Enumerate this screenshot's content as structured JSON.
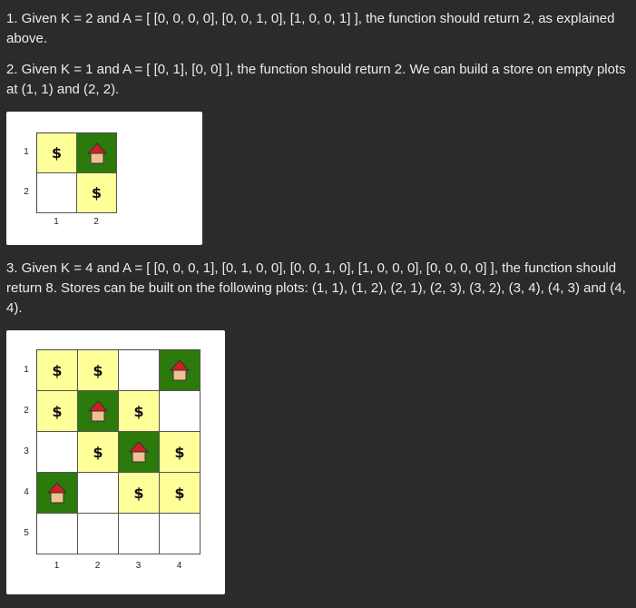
{
  "examples": [
    {
      "text": "1. Given K = 2 and A = [ [0, 0, 0, 0], [0, 0, 1, 0], [1, 0, 0, 1] ], the function should return 2, as explained above."
    },
    {
      "text": "2. Given K = 1 and A = [ [0, 1], [0, 0] ], the function should return 2. We can build a store on empty plots at (1, 1) and (2, 2).",
      "grid": {
        "row_labels": [
          "1",
          "2"
        ],
        "col_labels": [
          "1",
          "2"
        ],
        "cells": [
          [
            "store",
            "house"
          ],
          [
            "empty",
            "store"
          ]
        ]
      }
    },
    {
      "text": "3. Given K = 4 and A = [ [0, 0, 0, 1], [0, 1, 0, 0], [0, 0, 1, 0], [1, 0, 0, 0], [0, 0, 0, 0] ], the function should return 8. Stores can be built on the following plots: (1, 1), (1, 2), (2, 1), (2, 3), (3, 2), (3, 4), (4, 3) and (4, 4).",
      "grid": {
        "row_labels": [
          "1",
          "2",
          "3",
          "4",
          "5"
        ],
        "col_labels": [
          "1",
          "2",
          "3",
          "4"
        ],
        "cells": [
          [
            "store",
            "store",
            "empty",
            "house"
          ],
          [
            "store",
            "house",
            "store",
            "empty"
          ],
          [
            "empty",
            "store",
            "house",
            "store"
          ],
          [
            "house",
            "empty",
            "store",
            "store"
          ],
          [
            "empty",
            "empty",
            "empty",
            "empty"
          ]
        ]
      }
    }
  ],
  "symbols": {
    "store": "$",
    "house_icon": "house-icon"
  },
  "colors": {
    "store": "#ffff99",
    "house": "#2d7a0c",
    "roof": "#cc2222",
    "wall": "#f0c090"
  }
}
